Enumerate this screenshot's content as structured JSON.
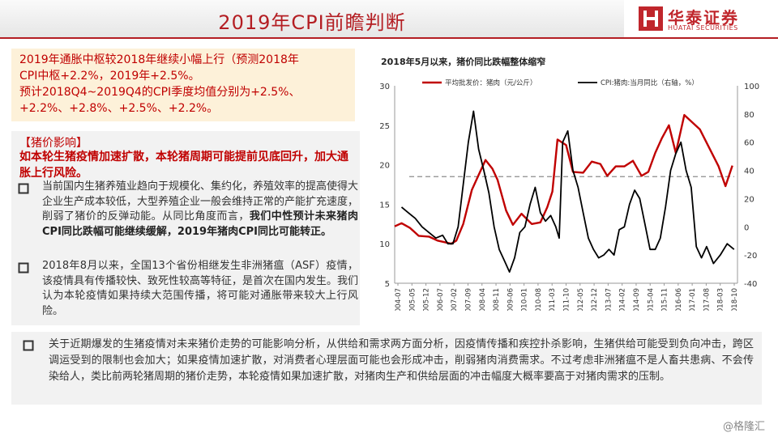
{
  "header": {
    "title": "2019年CPI前瞻判断",
    "logo_cn": "华泰证券",
    "logo_en": "HUATAI SECURITIES"
  },
  "summary": {
    "line1": "2019年通胀中枢较2018年继续小幅上行（预测2018年",
    "line2": "CPI中枢+2.2%，2019年+2.5%。",
    "line3": "预计2018Q4~2019Q4的CPI季度均值分别为+2.5%、",
    "line4": "+2.2%、+2.8%、+2.5%、+2.2%。"
  },
  "pork_box": {
    "title": "【猪价影响】",
    "lead": "如本轮生猪疫情加速扩散，本轮猪周期可能提前见底回升，加大通胀上行风险。",
    "bullet1_normal": "当前国内生猪养殖业趋向于规模化、集约化，养殖效率的提高使得大企业生产成本较低，大型养殖企业一般会维持正常的产能扩充速度，削弱了猪价的反弹动能。从同比角度而言，",
    "bullet1_bold": "我们中性预计未来猪肉CPI同比跌幅可能继续缓解，2019年猪肉CPI同比可能转正。",
    "bullet2": "2018年8月以来，全国13个省份相继发生非洲猪瘟（ASF）疫情，该疫情具有传播较快、致死性较高等特征，是首次在国内发生。我们认为本轮疫情如果持续大范围传播，将可能对通胀带来较大上行风险。"
  },
  "bottom_box": {
    "text": "关于近期爆发的生猪疫情对未来猪价走势的可能影响分析，从供给和需求两方面分析，因疫情传播和疾控扑杀影响，生猪供给可能受到负向冲击，跨区调运受到的限制也会加大；如果疫情加速扩散，对消费者心理层面可能也会形成冲击，削弱猪肉消费需求。不过考虑非洲猪瘟不是人畜共患病、不会传染给人，类比前两轮猪周期的猪价走势，本轮疫情如果加速扩散，对猪肉生产和供给层面的冲击幅度大概率要高于对猪肉需求的压制。"
  },
  "watermark": "@格隆汇",
  "colors": {
    "accent": "#b41e23",
    "pork": "#c00000",
    "cpi": "#000000",
    "refline": "#8c8c8c"
  },
  "chart_data": {
    "type": "line",
    "title": "2018年5月以来，猪价同比跌幅整体缩窄",
    "x_labels": [
      "2004-07",
      "2005-03",
      "2005-11",
      "2006-07",
      "2007-03",
      "2007-11",
      "2008-07",
      "2009-03",
      "2009-11",
      "2010-07",
      "2011-03",
      "2011-11",
      "2012-07",
      "2013-03",
      "2013-11",
      "2014-07",
      "2015-03",
      "2015-11",
      "2016-07",
      "2017-03",
      "2017-11",
      "2018-07"
    ],
    "x_ticks_printed": [
      "2004-07",
      "2005-05",
      "2005-12",
      "2006-07",
      "2007-02",
      "2007-09",
      "2008-04",
      "2008-11",
      "2009-06",
      "2010-01",
      "2010-08",
      "2011-03",
      "2011-10",
      "2012-05",
      "2012-12",
      "2013-07",
      "2014-02",
      "2014-09",
      "2015-04",
      "2015-11",
      "2016-06",
      "2017-01",
      "2017-08",
      "2018-03",
      "2018-10"
    ],
    "y_left": {
      "min": 5,
      "max": 30,
      "ticks": [
        5,
        10,
        15,
        20,
        25,
        30
      ]
    },
    "y_right": {
      "min": -40,
      "max": 100,
      "ticks": [
        -40,
        -20,
        0,
        20,
        40,
        60,
        80,
        100
      ]
    },
    "reference_line": {
      "axis": "left",
      "value": 18.5,
      "style": "dashed"
    },
    "legend_position": "top",
    "series": [
      {
        "name": "平均批发价：猪肉（元/公斤）",
        "axis": "left",
        "color": "#c00000",
        "values": [
          12.2,
          12.6,
          12.0,
          11.0,
          10.9,
          10.4,
          10.2,
          10.0,
          10.4,
          12.5,
          16.8,
          19.2,
          20.6,
          19.5,
          18.1,
          14.2,
          12.4,
          13.8,
          12.5,
          12.7,
          14.6,
          16.6,
          23.2,
          22.5,
          19.1,
          19.0,
          20.4,
          20.1,
          18.6,
          19.8,
          19.8,
          20.5,
          18.6,
          19.1,
          21.5,
          23.4,
          25.0,
          21.5,
          26.3,
          24.5,
          19.8,
          17.3,
          19.9
        ],
        "x_fraction": [
          0.0,
          0.02,
          0.045,
          0.07,
          0.1,
          0.125,
          0.145,
          0.165,
          0.18,
          0.2,
          0.225,
          0.25,
          0.265,
          0.285,
          0.3,
          0.325,
          0.345,
          0.37,
          0.4,
          0.425,
          0.445,
          0.46,
          0.475,
          0.5,
          0.52,
          0.55,
          0.575,
          0.6,
          0.62,
          0.645,
          0.67,
          0.695,
          0.72,
          0.74,
          0.76,
          0.78,
          0.8,
          0.82,
          0.845,
          0.89,
          0.945,
          0.965,
          0.985
        ]
      },
      {
        "name": "CPI:猪肉:当月同比（右轴，%）",
        "axis": "right",
        "color": "#000000",
        "values": [
          14,
          10,
          6,
          0,
          -4,
          -8,
          -6,
          -12,
          -12,
          0,
          30,
          60,
          82,
          55,
          40,
          24,
          0,
          -16,
          -24,
          -32,
          -22,
          -4,
          0,
          16,
          28,
          10,
          4,
          8,
          0,
          -8,
          60,
          68,
          40,
          28,
          10,
          -8,
          -16,
          -22,
          -20,
          -16,
          -20,
          -2,
          0,
          16,
          26,
          20,
          2,
          -16,
          -16,
          -8,
          14,
          40,
          52,
          60,
          40,
          28,
          -14,
          -22,
          -14,
          -26,
          -20,
          -12,
          -16
        ],
        "x_fraction": [
          0.02,
          0.04,
          0.06,
          0.08,
          0.1,
          0.12,
          0.14,
          0.155,
          0.17,
          0.185,
          0.2,
          0.215,
          0.23,
          0.245,
          0.26,
          0.275,
          0.29,
          0.305,
          0.32,
          0.335,
          0.35,
          0.365,
          0.38,
          0.395,
          0.41,
          0.425,
          0.44,
          0.455,
          0.47,
          0.48,
          0.49,
          0.505,
          0.52,
          0.535,
          0.55,
          0.565,
          0.58,
          0.595,
          0.61,
          0.625,
          0.64,
          0.655,
          0.67,
          0.685,
          0.7,
          0.715,
          0.73,
          0.745,
          0.76,
          0.775,
          0.79,
          0.805,
          0.82,
          0.835,
          0.85,
          0.865,
          0.88,
          0.895,
          0.91,
          0.93,
          0.95,
          0.97,
          0.99
        ]
      }
    ]
  }
}
